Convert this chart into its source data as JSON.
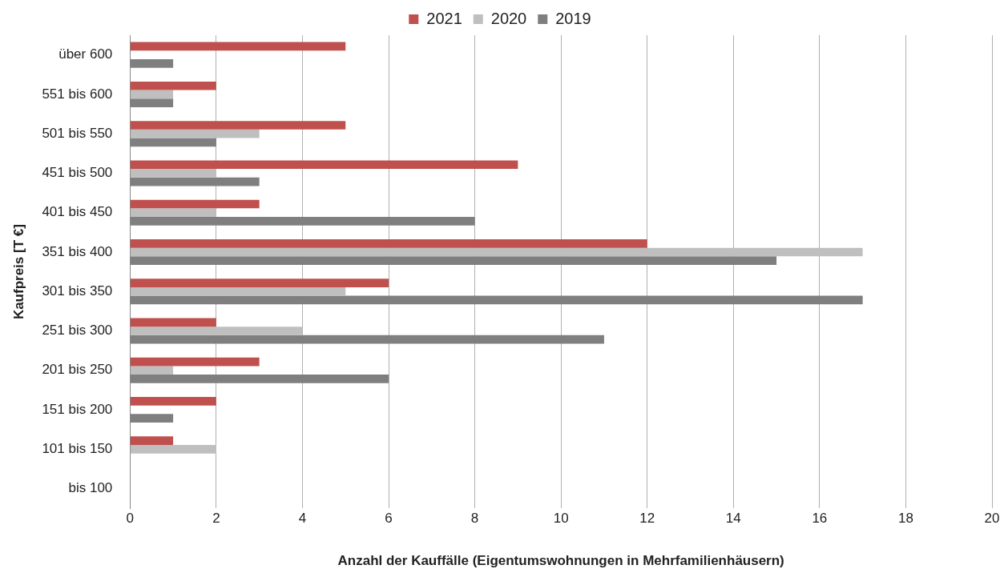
{
  "chart_data": {
    "type": "bar",
    "orientation": "horizontal",
    "xlabel": "Anzahl der Kauffälle (Eigentumswohnungen in Mehrfamilienhäusern)",
    "ylabel": "Kaufpreis [T €]",
    "categories": [
      "über 600",
      "551 bis 600",
      "501 bis 550",
      "451 bis 500",
      "401 bis 450",
      "351 bis 400",
      "301 bis 350",
      "251 bis 300",
      "201 bis 250",
      "151 bis 200",
      "101 bis 150",
      "bis 100"
    ],
    "series": [
      {
        "name": "2021",
        "color": "#c0504d",
        "values": [
          5,
          2,
          5,
          9,
          3,
          12,
          6,
          2,
          3,
          2,
          1,
          0
        ]
      },
      {
        "name": "2020",
        "color": "#bfbfbf",
        "values": [
          0,
          1,
          3,
          2,
          2,
          17,
          5,
          4,
          1,
          0,
          2,
          0
        ]
      },
      {
        "name": "2019",
        "color": "#7f7f7f",
        "values": [
          1,
          1,
          2,
          3,
          8,
          15,
          17,
          11,
          6,
          1,
          0,
          0
        ]
      }
    ],
    "xlim": [
      0,
      20
    ],
    "xticks": [
      0,
      2,
      4,
      6,
      8,
      10,
      12,
      14,
      16,
      18,
      20
    ],
    "grid": "x",
    "legend": "top"
  }
}
